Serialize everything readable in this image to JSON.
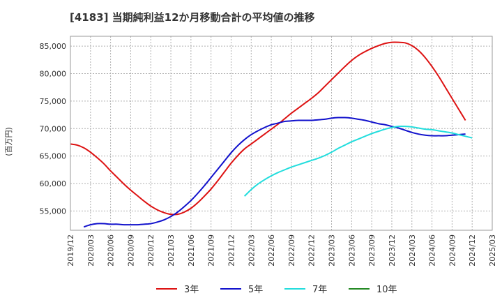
{
  "chart_data": {
    "type": "line",
    "title": "[4183]  当期純利益12か月移動合計の平均値の推移",
    "ylabel": "(百万円)",
    "xlabel": "",
    "ylim": [
      51500,
      86800
    ],
    "xlim": [
      "2019-12",
      "2025-03"
    ],
    "grid": true,
    "legend_position": "bottom",
    "y_ticks": [
      55000,
      60000,
      65000,
      70000,
      75000,
      80000,
      85000
    ],
    "y_tick_labels": [
      "55,000",
      "60,000",
      "65,000",
      "70,000",
      "75,000",
      "80,000",
      "85,000"
    ],
    "x_ticks": [
      "2019/12",
      "2020/03",
      "2020/06",
      "2020/09",
      "2020/12",
      "2021/03",
      "2021/06",
      "2021/09",
      "2021/12",
      "2022/03",
      "2022/06",
      "2022/09",
      "2022/12",
      "2023/03",
      "2023/06",
      "2023/09",
      "2023/12",
      "2024/03",
      "2024/06",
      "2024/09",
      "2024/12",
      "2025/03"
    ],
    "series": [
      {
        "name": "3年",
        "color": "#dd1111",
        "points": [
          [
            "2019-12",
            67200
          ],
          [
            "2020-01",
            67000
          ],
          [
            "2020-02",
            66500
          ],
          [
            "2020-03",
            65700
          ],
          [
            "2020-04",
            64700
          ],
          [
            "2020-05",
            63600
          ],
          [
            "2020-06",
            62300
          ],
          [
            "2020-07",
            61100
          ],
          [
            "2020-08",
            59900
          ],
          [
            "2020-09",
            58800
          ],
          [
            "2020-10",
            57800
          ],
          [
            "2020-11",
            56800
          ],
          [
            "2020-12",
            55900
          ],
          [
            "2021-01",
            55200
          ],
          [
            "2021-02",
            54700
          ],
          [
            "2021-03",
            54400
          ],
          [
            "2021-04",
            54400
          ],
          [
            "2021-05",
            54800
          ],
          [
            "2021-06",
            55500
          ],
          [
            "2021-07",
            56500
          ],
          [
            "2021-08",
            57700
          ],
          [
            "2021-09",
            59000
          ],
          [
            "2021-10",
            60500
          ],
          [
            "2021-11",
            62100
          ],
          [
            "2021-12",
            63700
          ],
          [
            "2022-01",
            65100
          ],
          [
            "2022-02",
            66300
          ],
          [
            "2022-03",
            67200
          ],
          [
            "2022-04",
            68100
          ],
          [
            "2022-05",
            69000
          ],
          [
            "2022-06",
            69900
          ],
          [
            "2022-07",
            70800
          ],
          [
            "2022-08",
            71800
          ],
          [
            "2022-09",
            72800
          ],
          [
            "2022-10",
            73700
          ],
          [
            "2022-11",
            74600
          ],
          [
            "2022-12",
            75500
          ],
          [
            "2023-01",
            76500
          ],
          [
            "2023-02",
            77700
          ],
          [
            "2023-03",
            78900
          ],
          [
            "2023-04",
            80100
          ],
          [
            "2023-05",
            81300
          ],
          [
            "2023-06",
            82400
          ],
          [
            "2023-07",
            83300
          ],
          [
            "2023-08",
            84000
          ],
          [
            "2023-09",
            84600
          ],
          [
            "2023-10",
            85100
          ],
          [
            "2023-11",
            85500
          ],
          [
            "2023-12",
            85700
          ],
          [
            "2024-01",
            85700
          ],
          [
            "2024-02",
            85600
          ],
          [
            "2024-03",
            85100
          ],
          [
            "2024-04",
            84200
          ],
          [
            "2024-05",
            82900
          ],
          [
            "2024-06",
            81300
          ],
          [
            "2024-07",
            79500
          ],
          [
            "2024-08",
            77500
          ],
          [
            "2024-09",
            75500
          ],
          [
            "2024-10",
            73500
          ],
          [
            "2024-11",
            71500
          ]
        ]
      },
      {
        "name": "5年",
        "color": "#1111cc",
        "points": [
          [
            "2020-02",
            52100
          ],
          [
            "2020-03",
            52500
          ],
          [
            "2020-04",
            52700
          ],
          [
            "2020-05",
            52700
          ],
          [
            "2020-06",
            52600
          ],
          [
            "2020-07",
            52600
          ],
          [
            "2020-08",
            52500
          ],
          [
            "2020-09",
            52500
          ],
          [
            "2020-10",
            52500
          ],
          [
            "2020-11",
            52600
          ],
          [
            "2020-12",
            52700
          ],
          [
            "2021-01",
            53000
          ],
          [
            "2021-02",
            53400
          ],
          [
            "2021-03",
            54000
          ],
          [
            "2021-04",
            54800
          ],
          [
            "2021-05",
            55800
          ],
          [
            "2021-06",
            56900
          ],
          [
            "2021-07",
            58200
          ],
          [
            "2021-08",
            59600
          ],
          [
            "2021-09",
            61100
          ],
          [
            "2021-10",
            62600
          ],
          [
            "2021-11",
            64100
          ],
          [
            "2021-12",
            65600
          ],
          [
            "2022-01",
            66900
          ],
          [
            "2022-02",
            68000
          ],
          [
            "2022-03",
            68900
          ],
          [
            "2022-04",
            69600
          ],
          [
            "2022-05",
            70200
          ],
          [
            "2022-06",
            70700
          ],
          [
            "2022-07",
            71000
          ],
          [
            "2022-08",
            71300
          ],
          [
            "2022-09",
            71400
          ],
          [
            "2022-10",
            71500
          ],
          [
            "2022-11",
            71500
          ],
          [
            "2022-12",
            71500
          ],
          [
            "2023-01",
            71600
          ],
          [
            "2023-02",
            71700
          ],
          [
            "2023-03",
            71900
          ],
          [
            "2023-04",
            72000
          ],
          [
            "2023-05",
            72000
          ],
          [
            "2023-06",
            71900
          ],
          [
            "2023-07",
            71700
          ],
          [
            "2023-08",
            71500
          ],
          [
            "2023-09",
            71200
          ],
          [
            "2023-10",
            70900
          ],
          [
            "2023-11",
            70700
          ],
          [
            "2023-12",
            70400
          ],
          [
            "2024-01",
            70100
          ],
          [
            "2024-02",
            69700
          ],
          [
            "2024-03",
            69300
          ],
          [
            "2024-04",
            69000
          ],
          [
            "2024-05",
            68800
          ],
          [
            "2024-06",
            68700
          ],
          [
            "2024-07",
            68700
          ],
          [
            "2024-08",
            68700
          ],
          [
            "2024-09",
            68800
          ],
          [
            "2024-10",
            68900
          ],
          [
            "2024-11",
            69000
          ]
        ]
      },
      {
        "name": "7年",
        "color": "#22dddd",
        "points": [
          [
            "2022-02",
            57700
          ],
          [
            "2022-03",
            58900
          ],
          [
            "2022-04",
            59900
          ],
          [
            "2022-05",
            60700
          ],
          [
            "2022-06",
            61400
          ],
          [
            "2022-07",
            62000
          ],
          [
            "2022-08",
            62500
          ],
          [
            "2022-09",
            63000
          ],
          [
            "2022-10",
            63400
          ],
          [
            "2022-11",
            63800
          ],
          [
            "2022-12",
            64200
          ],
          [
            "2023-01",
            64600
          ],
          [
            "2023-02",
            65100
          ],
          [
            "2023-03",
            65700
          ],
          [
            "2023-04",
            66400
          ],
          [
            "2023-05",
            67000
          ],
          [
            "2023-06",
            67600
          ],
          [
            "2023-07",
            68100
          ],
          [
            "2023-08",
            68600
          ],
          [
            "2023-09",
            69100
          ],
          [
            "2023-10",
            69500
          ],
          [
            "2023-11",
            69900
          ],
          [
            "2023-12",
            70200
          ],
          [
            "2024-01",
            70400
          ],
          [
            "2024-02",
            70400
          ],
          [
            "2024-03",
            70300
          ],
          [
            "2024-04",
            70100
          ],
          [
            "2024-05",
            69900
          ],
          [
            "2024-06",
            69800
          ],
          [
            "2024-07",
            69600
          ],
          [
            "2024-08",
            69400
          ],
          [
            "2024-09",
            69200
          ],
          [
            "2024-10",
            68900
          ],
          [
            "2024-11",
            68600
          ],
          [
            "2024-12",
            68300
          ]
        ]
      },
      {
        "name": "10年",
        "color": "#228822",
        "points": []
      }
    ]
  }
}
